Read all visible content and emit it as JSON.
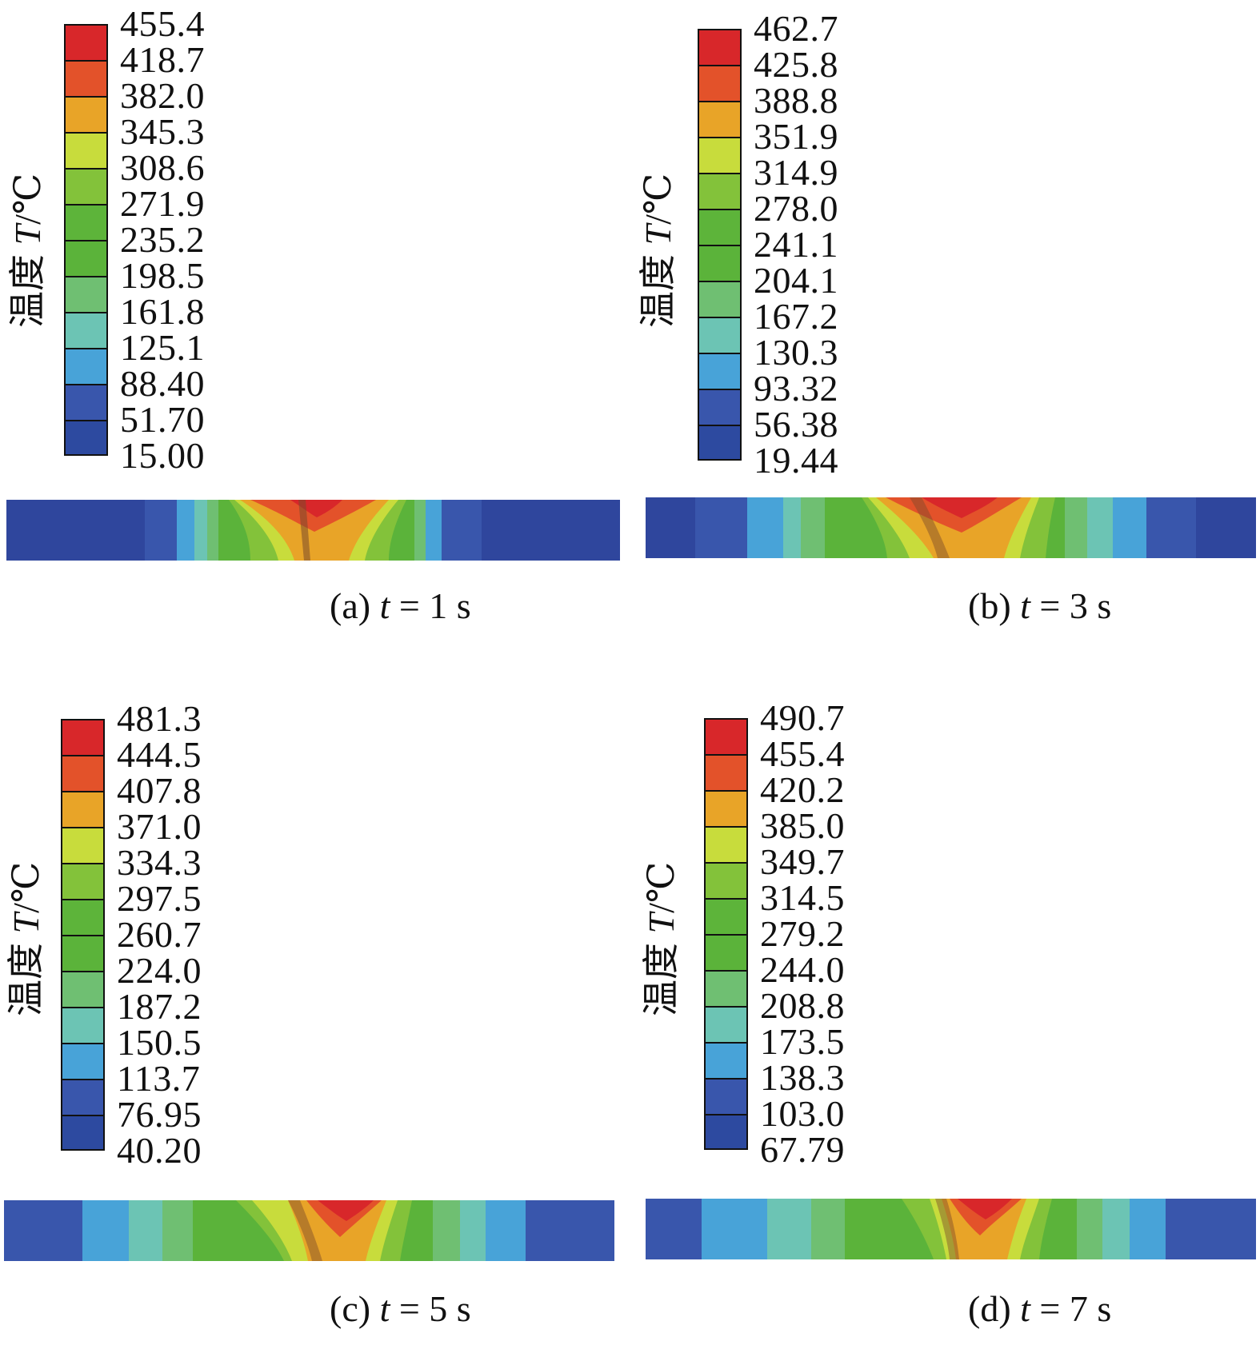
{
  "axis_title": {
    "text": "温度",
    "variable": "T",
    "unit": "/℃"
  },
  "colors": [
    "#2d4aa0",
    "#3956ac",
    "#48a3d8",
    "#6cc4b4",
    "#6fbf72",
    "#5bb33a",
    "#5db43a",
    "#83c23a",
    "#c8dc3c",
    "#e8a428",
    "#e3522a",
    "#d8272a"
  ],
  "panels": [
    {
      "id": "a",
      "caption_prefix": "(a)",
      "caption_var": "t",
      "caption_eq": "= 1 s",
      "time_s": 1,
      "legend_values": [
        "455.4",
        "418.7",
        "382.0",
        "345.3",
        "308.6",
        "271.9",
        "235.2",
        "198.5",
        "161.8",
        "125.1",
        "88.40",
        "51.70",
        "15.00"
      ]
    },
    {
      "id": "b",
      "caption_prefix": "(b)",
      "caption_var": "t",
      "caption_eq": "= 3 s",
      "time_s": 3,
      "legend_values": [
        "462.7",
        "425.8",
        "388.8",
        "351.9",
        "314.9",
        "278.0",
        "241.1",
        "204.1",
        "167.2",
        "130.3",
        "93.32",
        "56.38",
        "19.44"
      ]
    },
    {
      "id": "c",
      "caption_prefix": "(c)",
      "caption_var": "t",
      "caption_eq": "= 5 s",
      "time_s": 5,
      "legend_values": [
        "481.3",
        "444.5",
        "407.8",
        "371.0",
        "334.3",
        "297.5",
        "260.7",
        "224.0",
        "187.2",
        "150.5",
        "113.7",
        "76.95",
        "40.20"
      ]
    },
    {
      "id": "d",
      "caption_prefix": "(d)",
      "caption_var": "t",
      "caption_eq": "= 7 s",
      "time_s": 7,
      "legend_values": [
        "490.7",
        "455.4",
        "420.2",
        "385.0",
        "349.7",
        "314.5",
        "279.2",
        "244.0",
        "208.8",
        "173.5",
        "138.3",
        "103.0",
        "67.79"
      ]
    }
  ]
}
